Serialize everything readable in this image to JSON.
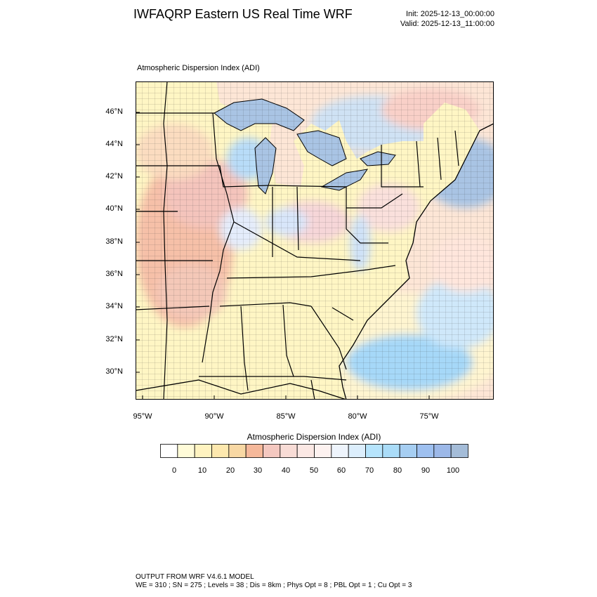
{
  "header": {
    "title": "IWFAQRP Eastern US Real Time WRF",
    "init": "Init: 2025-12-13_00:00:00",
    "valid": "Valid: 2025-12-13_11:00:00"
  },
  "map": {
    "subtitle": "Atmospheric Dispersion Index   (ADI)",
    "lat_labels": [
      "46°N",
      "44°N",
      "42°N",
      "40°N",
      "38°N",
      "36°N",
      "34°N",
      "32°N",
      "30°N"
    ],
    "lon_labels": [
      "95°W",
      "90°W",
      "85°W",
      "80°W",
      "75°W"
    ],
    "colors": {
      "water": "#a9c4e4",
      "low": "#fff8c8",
      "mid": "#f6c2b6",
      "high": "#a6d2f6",
      "border": "#000000"
    }
  },
  "colorbar": {
    "title": "Atmospheric Dispersion Index  (ADI)",
    "labels": [
      "0",
      "10",
      "20",
      "30",
      "40",
      "50",
      "60",
      "70",
      "80",
      "90",
      "100"
    ],
    "colors": [
      "#ffffff",
      "#fffbd8",
      "#fff3c0",
      "#fde8ae",
      "#f8d8a4",
      "#f5b89a",
      "#f4c8c0",
      "#f8dcd6",
      "#fbe8e4",
      "#fdf2f0",
      "#eef4fc",
      "#dceefc",
      "#b6e4fc",
      "#aadcf8",
      "#a6cef2",
      "#9ec0f0",
      "#9cb8e8",
      "#a4bcd8"
    ]
  },
  "footer": {
    "line1": "OUTPUT FROM WRF V4.6.1 MODEL",
    "line2": "WE = 310 ; SN = 275 ; Levels = 38 ; Dis = 8km ; Phys Opt = 8 ; PBL Opt = 1 ; Cu Opt = 3"
  }
}
